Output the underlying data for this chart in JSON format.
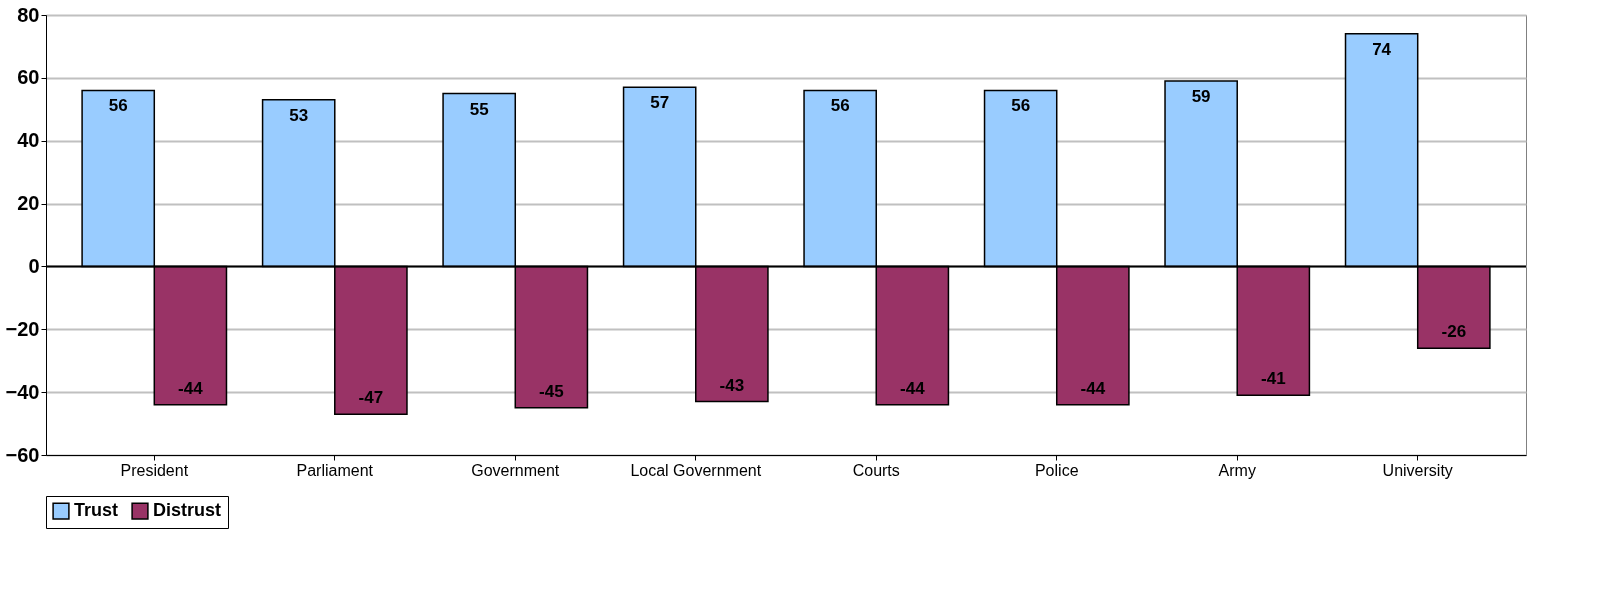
{
  "chart_data": {
    "type": "bar",
    "categories": [
      "President",
      "Parliament",
      "Government",
      "Local Government",
      "Courts",
      "Police",
      "Army",
      "University"
    ],
    "series": [
      {
        "name": "Trust",
        "color": "#99ccff",
        "values": [
          56,
          53,
          55,
          57,
          56,
          56,
          59,
          74
        ]
      },
      {
        "name": "Distrust",
        "color": "#993366",
        "values": [
          -44,
          -47,
          -45,
          -43,
          -44,
          -44,
          -41,
          -26
        ]
      }
    ],
    "ylim": [
      -60,
      80
    ],
    "yticks": [
      -60,
      -40,
      -20,
      0,
      20,
      40,
      60,
      80
    ],
    "grid": "y",
    "legend": "bottom",
    "data_labels": true
  }
}
